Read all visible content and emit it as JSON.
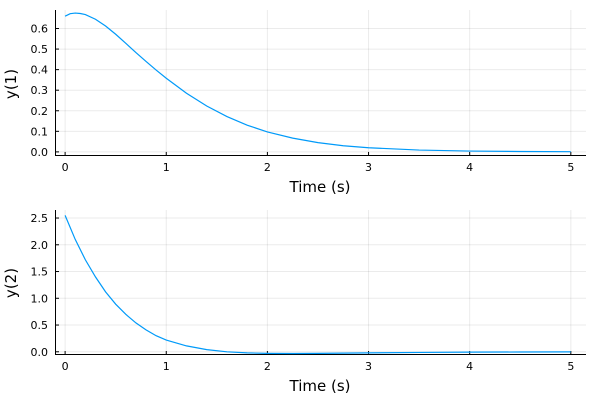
{
  "colors": {
    "series": "#009af9"
  },
  "chart_data": [
    {
      "type": "line",
      "xlabel": "Time (s)",
      "ylabel": "y(1)",
      "xlim": [
        -0.1,
        5.15
      ],
      "ylim": [
        -0.02,
        0.69
      ],
      "xticks": [
        0,
        1,
        2,
        3,
        4,
        5
      ],
      "yticks": [
        0.0,
        0.1,
        0.2,
        0.3,
        0.4,
        0.5,
        0.6
      ],
      "ytick_labels": [
        "0.0",
        "0.1",
        "0.2",
        "0.3",
        "0.4",
        "0.5",
        "0.6"
      ],
      "grid": true,
      "legend": "none",
      "series": [
        {
          "color": "#009af9",
          "x": [
            0,
            0.05,
            0.1,
            0.15,
            0.2,
            0.3,
            0.4,
            0.5,
            0.6,
            0.7,
            0.8,
            0.9,
            1.0,
            1.2,
            1.4,
            1.6,
            1.8,
            2.0,
            2.25,
            2.5,
            2.75,
            3.0,
            3.5,
            4.0,
            4.5,
            5.0
          ],
          "y": [
            0.66,
            0.672,
            0.675,
            0.673,
            0.668,
            0.645,
            0.612,
            0.572,
            0.528,
            0.483,
            0.44,
            0.398,
            0.358,
            0.285,
            0.223,
            0.172,
            0.13,
            0.097,
            0.067,
            0.045,
            0.03,
            0.02,
            0.009,
            0.004,
            0.002,
            0.001
          ]
        }
      ]
    },
    {
      "type": "line",
      "xlabel": "Time (s)",
      "ylabel": "y(2)",
      "xlim": [
        -0.1,
        5.15
      ],
      "ylim": [
        -0.06,
        2.65
      ],
      "xticks": [
        0,
        1,
        2,
        3,
        4,
        5
      ],
      "yticks": [
        0.0,
        0.5,
        1.0,
        1.5,
        2.0,
        2.5
      ],
      "ytick_labels": [
        "0.0",
        "0.5",
        "1.0",
        "1.5",
        "2.0",
        "2.5"
      ],
      "grid": true,
      "legend": "none",
      "series": [
        {
          "color": "#009af9",
          "x": [
            0,
            0.1,
            0.2,
            0.3,
            0.4,
            0.5,
            0.6,
            0.7,
            0.8,
            0.9,
            1.0,
            1.2,
            1.4,
            1.6,
            1.8,
            2.0,
            2.25,
            2.5,
            3.0,
            3.5,
            4.0,
            4.5,
            5.0
          ],
          "y": [
            2.55,
            2.1,
            1.72,
            1.4,
            1.12,
            0.89,
            0.7,
            0.54,
            0.41,
            0.3,
            0.22,
            0.11,
            0.04,
            0.0,
            -0.02,
            -0.03,
            -0.032,
            -0.03,
            -0.02,
            -0.012,
            -0.007,
            -0.004,
            -0.002
          ]
        }
      ]
    }
  ]
}
